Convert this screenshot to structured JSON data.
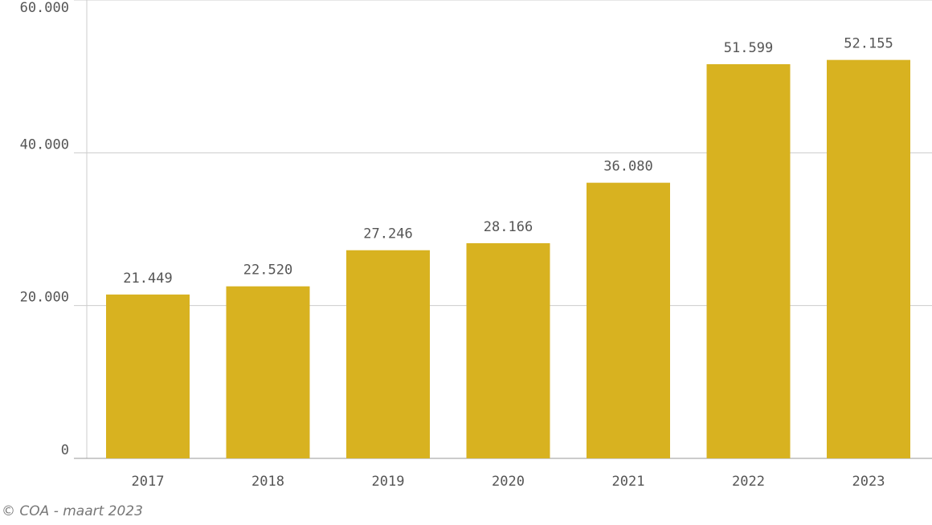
{
  "chart_data": {
    "type": "bar",
    "categories": [
      "2017",
      "2018",
      "2019",
      "2020",
      "2021",
      "2022",
      "2023"
    ],
    "values": [
      21449,
      22520,
      27246,
      28166,
      36080,
      51599,
      52155
    ],
    "value_labels": [
      "21.449",
      "22.520",
      "27.246",
      "28.166",
      "36.080",
      "51.599",
      "52.155"
    ],
    "color": "#d8b220",
    "ylim": [
      0,
      60000
    ],
    "yticks": [
      0,
      {
        "value": 20000,
        "label": "20.000"
      },
      {
        "value": 40000,
        "label": "40.000"
      },
      {
        "value": 60000,
        "label": "60.000"
      }
    ],
    "grid": true,
    "source": "© COA - maart 2023"
  }
}
